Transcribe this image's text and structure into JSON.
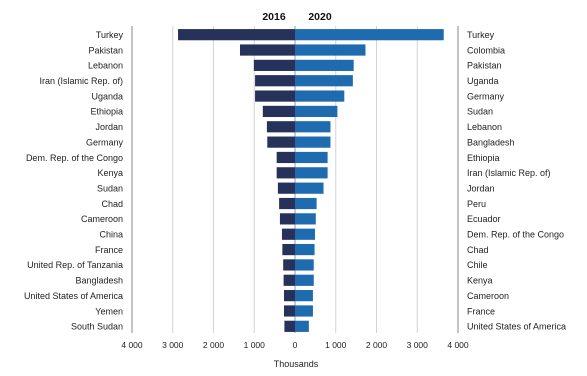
{
  "chart_data": {
    "type": "bar",
    "orientation": "horizontal-diverging",
    "xlabel": "Thousands",
    "xlim": [
      -4000,
      4000
    ],
    "x_ticks": [
      -4000,
      -3000,
      -2000,
      -1000,
      0,
      1000,
      2000,
      3000,
      4000
    ],
    "x_tick_labels": [
      "4 000",
      "3 000",
      "2 000",
      "1 000",
      "0",
      "1 000",
      "2 000",
      "3 000",
      "4 000"
    ],
    "grid": true,
    "series": [
      {
        "name": "2016",
        "side": "left",
        "color": "#27325a",
        "categories": [
          "Turkey",
          "Pakistan",
          "Lebanon",
          "Iran (Islamic Rep. of)",
          "Uganda",
          "Ethiopia",
          "Jordan",
          "Germany",
          "Dem. Rep. of the Congo",
          "Kenya",
          "Sudan",
          "Chad",
          "Cameroon",
          "China",
          "France",
          "United Rep. of Tanzania",
          "Bangladesh",
          "United States of America",
          "Yemen",
          "South Sudan"
        ],
        "values": [
          2870,
          1350,
          1010,
          980,
          980,
          790,
          690,
          680,
          450,
          450,
          420,
          390,
          370,
          320,
          310,
          290,
          280,
          270,
          270,
          260
        ]
      },
      {
        "name": "2020",
        "side": "right",
        "color": "#1f6bb0",
        "categories": [
          "Turkey",
          "Colombia",
          "Pakistan",
          "Uganda",
          "Germany",
          "Sudan",
          "Lebanon",
          "Bangladesh",
          "Ethiopia",
          "Iran (Islamic Rep. of)",
          "Jordan",
          "Peru",
          "Ecuador",
          "Dem. Rep. of the Congo",
          "Chad",
          "Chile",
          "Kenya",
          "Cameroon",
          "France",
          "United States of America"
        ],
        "values": [
          3650,
          1730,
          1440,
          1420,
          1210,
          1040,
          870,
          870,
          800,
          800,
          700,
          530,
          510,
          490,
          480,
          460,
          460,
          440,
          440,
          340
        ]
      }
    ]
  }
}
